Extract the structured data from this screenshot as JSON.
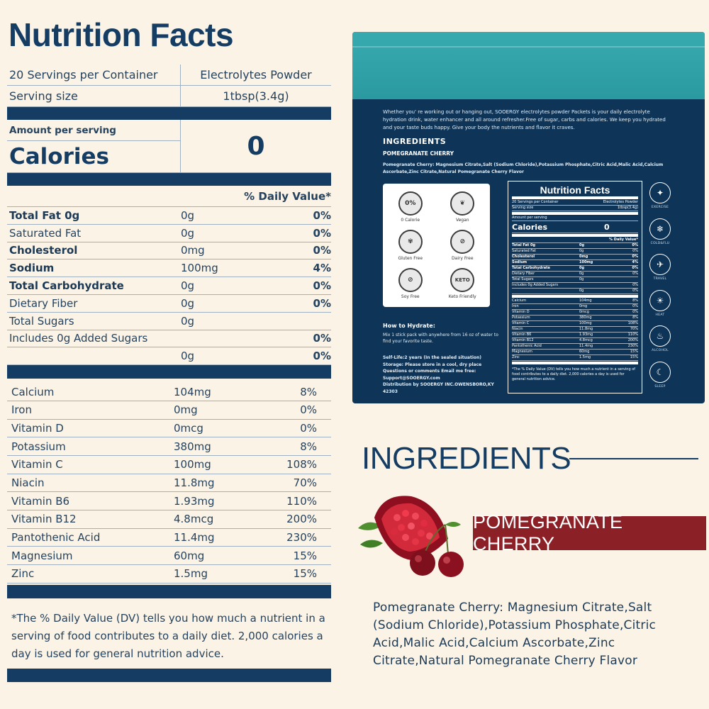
{
  "nutrition": {
    "title": "Nutrition Facts",
    "servings_per_container": "20 Servings per Container",
    "product_type": "Electrolytes Powder",
    "serving_size_label": "Serving size",
    "serving_size_value": "1tbsp(3.4g)",
    "amount_per_serving": "Amount per serving",
    "calories_label": "Calories",
    "calories_value": "0",
    "daily_value_header": "% Daily Value*",
    "facts": [
      {
        "name": "Total Fat 0g",
        "amount": "0g",
        "pct": "0%",
        "bold": true
      },
      {
        "name": "Saturated Fat",
        "amount": "0g",
        "pct": "0%",
        "bold": false
      },
      {
        "name": "Cholesterol",
        "amount": "0mg",
        "pct": "0%",
        "bold": true
      },
      {
        "name": "Sodium",
        "amount": "100mg",
        "pct": "4%",
        "bold": true
      },
      {
        "name": "Total Carbohydrate",
        "amount": "0g",
        "pct": "0%",
        "bold": true
      },
      {
        "name": "Dietary Fiber",
        "amount": "0g",
        "pct": "0%",
        "bold": false
      },
      {
        "name": "Total Sugars",
        "amount": "0g",
        "pct": "",
        "bold": false
      },
      {
        "name": "Includes 0g Added Sugars",
        "amount": "",
        "pct": "0%",
        "bold": false
      },
      {
        "name": "",
        "amount": "0g",
        "pct": "0%",
        "bold": false
      }
    ],
    "vitamins": [
      {
        "name": "Calcium",
        "amount": "104mg",
        "pct": "8%"
      },
      {
        "name": "Iron",
        "amount": "0mg",
        "pct": "0%"
      },
      {
        "name": "Vitamin D",
        "amount": "0mcg",
        "pct": "0%"
      },
      {
        "name": "Potassium",
        "amount": "380mg",
        "pct": "8%"
      },
      {
        "name": "Vitamin C",
        "amount": "100mg",
        "pct": "108%"
      },
      {
        "name": "Niacin",
        "amount": "11.8mg",
        "pct": "70%"
      },
      {
        "name": "Vitamin B6",
        "amount": "1.93mg",
        "pct": "110%"
      },
      {
        "name": "Vitamin B12",
        "amount": "4.8mcg",
        "pct": "200%"
      },
      {
        "name": "Pantothenic Acid",
        "amount": "11.4mg",
        "pct": "230%"
      },
      {
        "name": "Magnesium",
        "amount": "60mg",
        "pct": "15%"
      },
      {
        "name": "Zinc",
        "amount": "1.5mg",
        "pct": "15%"
      }
    ],
    "footnote": "*The % Daily Value (DV) tells you how much a nutrient in a serving of food contributes to a daily diet. 2,000 calories a day is used for general nutrition advice."
  },
  "package": {
    "intro": "Whether you' re working out or hanging out, SOOERGY electrolytes powder Packets is your daily electrolyte hydration drink, water enhancer and all around refresher.Free of sugar, carbs and calories. We keep you hydrated and your taste buds happy. Give your body the nutrients and flavor it craves.",
    "ingredients_heading": "INGREDIENTS",
    "flavor": "POMEGRANATE CHERRY",
    "ingredients_text": "Pomegranate Cherry: Magnesium Citrate,Salt (Sodium Chloride),Potassium Phosphate,Citric Acid,Malic Acid,Calcium Ascorbate,Zinc Citrate,Natural Pomegranate Cherry Flavor",
    "badges": [
      {
        "label": "0 Calorie",
        "mark": "0%",
        "icon": "zero-calorie-icon"
      },
      {
        "label": "Vegan",
        "mark": "❦",
        "icon": "vegan-leaf-icon"
      },
      {
        "label": "Gluten Free",
        "mark": "✾",
        "icon": "gluten-free-icon"
      },
      {
        "label": "Dairy Free",
        "mark": "⊘",
        "icon": "dairy-free-icon"
      },
      {
        "label": "Soy Free",
        "mark": "⊘",
        "icon": "soy-free-icon"
      },
      {
        "label": "Keto Friendly",
        "mark": "KETO",
        "icon": "keto-friendly-icon"
      }
    ],
    "hydrate_heading": "How to Hydrate:",
    "hydrate_text": "Mix 1 stick pack with anywhere from 16 oz of water to find your favorite taste.",
    "shelf_life": "Self-Life:2 years (In the sealed situation)",
    "storage": "Storage: Please store in a cool, dry place",
    "questions": "Questions or comments Email me free:",
    "support": "Support@SOOERGY.com",
    "distribution": "Distribution by SOOERGY INC.OWENSBORO,KY 42303",
    "side_icons": [
      {
        "label": "EXERCISE",
        "glyph": "✦",
        "icon": "exercise-icon"
      },
      {
        "label": "COLD&FLU",
        "glyph": "❄",
        "icon": "cold-flu-icon"
      },
      {
        "label": "TRAVEL",
        "glyph": "✈",
        "icon": "travel-icon"
      },
      {
        "label": "HEAT",
        "glyph": "☀",
        "icon": "heat-icon"
      },
      {
        "label": "ALCOHOL",
        "glyph": "♨",
        "icon": "alcohol-icon"
      },
      {
        "label": "SLEEP",
        "glyph": "☾",
        "icon": "sleep-icon"
      }
    ]
  },
  "ingredients": {
    "title": "INGREDIENTS",
    "flavor": "POMEGRANATE CHERRY",
    "text": "Pomegranate Cherry: Magnesium Citrate,Salt (Sodium Chloride),Potassium Phosphate,Citric Acid,Malic Acid,Calcium Ascorbate,Zinc Citrate,Natural Pomegranate Cherry Flavor"
  },
  "colors": {
    "navy": "#153d63",
    "background": "#fbf3e6",
    "teal": "#37aab0",
    "banner_red": "#8b2126"
  }
}
